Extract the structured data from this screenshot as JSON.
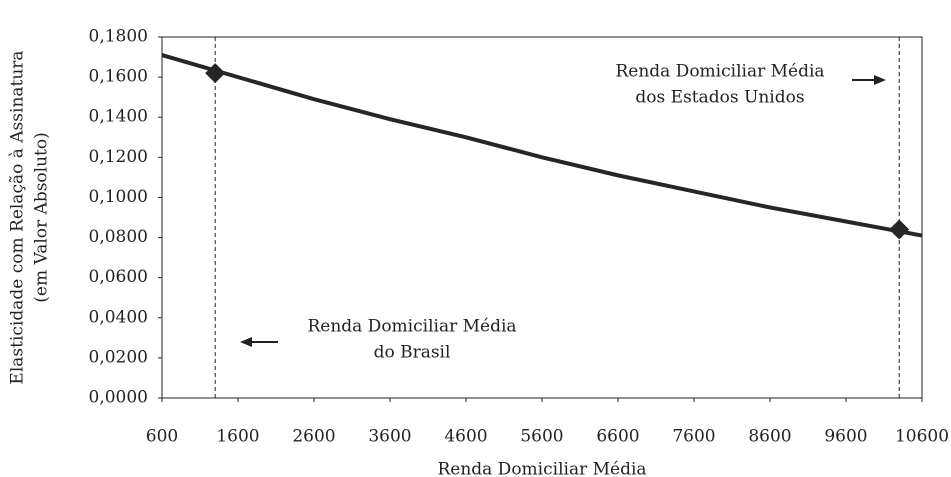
{
  "chart_data": {
    "type": "line",
    "xlabel": "Renda Domiciliar Média",
    "ylabel": [
      "Elasticidade com Relação à Assinatura",
      "(em Valor Absoluto)"
    ],
    "x": [
      600,
      1600,
      2600,
      3600,
      4600,
      5600,
      6600,
      7600,
      8600,
      9600,
      10600
    ],
    "values": [
      0.171,
      0.16,
      0.149,
      0.139,
      0.13,
      0.12,
      0.111,
      0.103,
      0.095,
      0.088,
      0.081
    ],
    "color": "#262626",
    "markers": {
      "x": [
        1300,
        10300
      ],
      "values": [
        0.162,
        0.084
      ]
    },
    "vlines": [
      1300,
      10300
    ],
    "annotations": [
      {
        "lines": [
          "Renda Domiciliar Média",
          "do Brasil"
        ],
        "x": 1300
      },
      {
        "lines": [
          "Renda Domiciliar Média",
          "dos Estados Unidos"
        ],
        "x": 10300
      }
    ],
    "xlim": [
      600,
      10600
    ],
    "xticks": [
      600,
      1600,
      2600,
      3600,
      4600,
      5600,
      6600,
      7600,
      8600,
      9600,
      10600
    ],
    "ylim": [
      0,
      0.18
    ],
    "yticks": [
      {
        "value": 0,
        "label": "0,0000"
      },
      {
        "value": 0.02,
        "label": "0,0200"
      },
      {
        "value": 0.04,
        "label": "0,0400"
      },
      {
        "value": 0.06,
        "label": "0,0600"
      },
      {
        "value": 0.08,
        "label": "0,0800"
      },
      {
        "value": 0.1,
        "label": "0,1000"
      },
      {
        "value": 0.12,
        "label": "0,1200"
      },
      {
        "value": 0.14,
        "label": "0,1400"
      },
      {
        "value": 0.16,
        "label": "0,1600"
      },
      {
        "value": 0.18,
        "label": "0,1800"
      }
    ],
    "grid": false
  }
}
